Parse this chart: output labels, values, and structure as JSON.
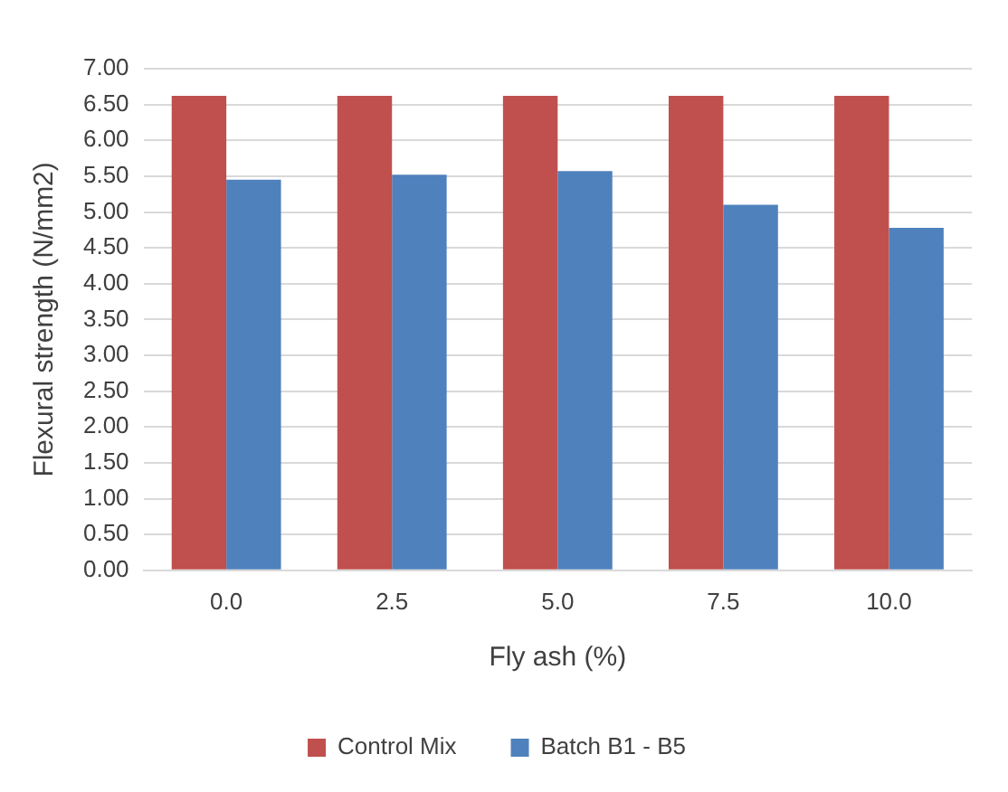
{
  "chart_data": {
    "type": "bar",
    "xlabel": "Fly ash (%)",
    "ylabel": "Flexural strength (N/mm2)",
    "categories": [
      "0.0",
      "2.5",
      "5.0",
      "7.5",
      "10.0"
    ],
    "series": [
      {
        "name": "Control Mix",
        "color": "#c0504d",
        "values": [
          6.62,
          6.62,
          6.62,
          6.62,
          6.62
        ]
      },
      {
        "name": "Batch B1 - B5",
        "color": "#4f81bd",
        "values": [
          5.45,
          5.52,
          5.57,
          5.1,
          4.78
        ]
      }
    ],
    "ylim": [
      0,
      7
    ],
    "yticks": [
      {
        "value": 0,
        "label": "0.00"
      },
      {
        "value": 0.5,
        "label": "0.50"
      },
      {
        "value": 1,
        "label": "1.00"
      },
      {
        "value": 1.5,
        "label": "1.50"
      },
      {
        "value": 2,
        "label": "2.00"
      },
      {
        "value": 2.5,
        "label": "2.50"
      },
      {
        "value": 3,
        "label": "3.00"
      },
      {
        "value": 3.5,
        "label": "3.50"
      },
      {
        "value": 4,
        "label": "4.00"
      },
      {
        "value": 4.5,
        "label": "4.50"
      },
      {
        "value": 5,
        "label": "5.00"
      },
      {
        "value": 5.5,
        "label": "5.50"
      },
      {
        "value": 6,
        "label": "6.00"
      },
      {
        "value": 6.5,
        "label": "6.50"
      },
      {
        "value": 7,
        "label": "7.00"
      }
    ],
    "grid": "y",
    "legend": "bottom"
  }
}
